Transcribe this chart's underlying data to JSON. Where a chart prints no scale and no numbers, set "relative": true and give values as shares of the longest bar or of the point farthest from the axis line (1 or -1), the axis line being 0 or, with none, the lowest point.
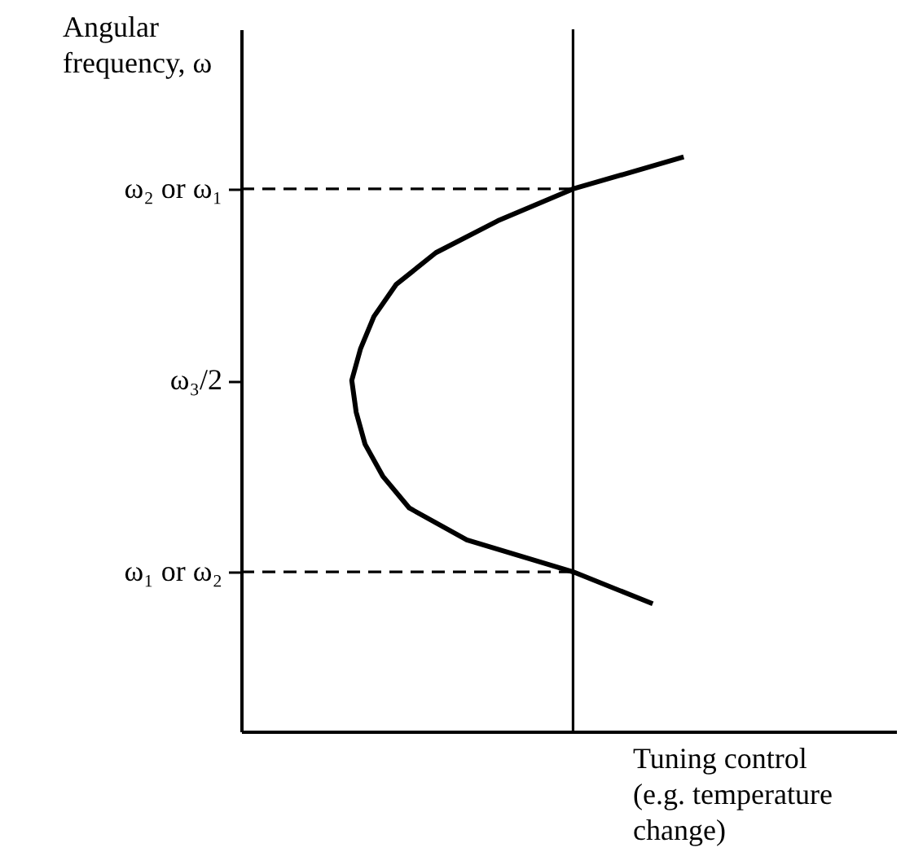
{
  "chart_data": {
    "type": "line",
    "orientation": "horizontal",
    "relative": true,
    "xlabel": "Tuning control\n(e.g. temperature\nchange)",
    "ylabel": "Angular\nfrequency, ω",
    "tick_labels": "y",
    "categories": [
      null,
      "ω₂ or ω₁",
      null,
      null,
      null,
      null,
      null,
      "ω₃/2",
      null,
      null,
      null,
      null,
      null,
      "ω₁ or ω₂",
      null
    ],
    "series": [
      {
        "color": "#000000",
        "values": [
          1.0,
          0.75,
          0.58,
          0.44,
          0.35,
          0.3,
          0.27,
          0.25,
          0.26,
          0.28,
          0.32,
          0.38,
          0.51,
          0.75,
          0.93
        ]
      }
    ],
    "ref_lines": [
      {
        "axis": "x",
        "value": 0.75,
        "color": "#000000",
        "line_style": "solid"
      },
      {
        "axis": "y",
        "value": "ω₂ or ω₁",
        "color": "#000000",
        "line_style": "dashed"
      },
      {
        "axis": "y",
        "value": "ω₁ or ω₂",
        "color": "#000000",
        "line_style": "dashed"
      }
    ]
  }
}
